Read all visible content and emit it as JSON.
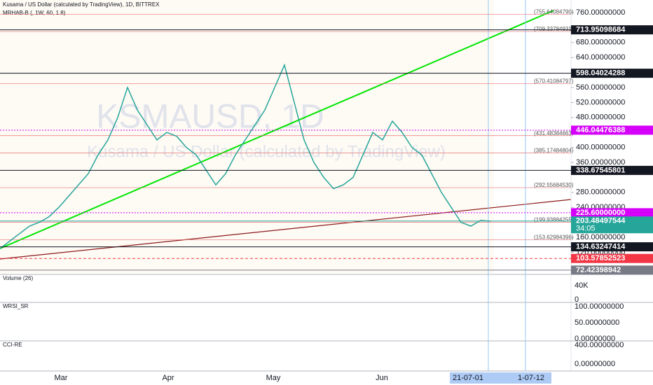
{
  "header": {
    "title": "Kusama / US Dollar (calculated by TradingView), 1D, BITTREX",
    "indicator": "MRHAB-B (, 1W, 60, 1.8)"
  },
  "watermark": {
    "symbol": "KSMAUSD, 1D",
    "name": "Kusama / US Dollar (calculated by TradingView)"
  },
  "price": {
    "type": "line",
    "ylim": [
      64.7,
      793.6
    ],
    "yticks": [
      {
        "value": 760,
        "label": "760.00000000"
      },
      {
        "value": 680,
        "label": "680.00000000"
      },
      {
        "value": 640,
        "label": "640.00000000"
      },
      {
        "value": 560,
        "label": "560.00000000"
      },
      {
        "value": 520,
        "label": "520.00000000"
      },
      {
        "value": 480,
        "label": "480.00000000"
      },
      {
        "value": 400,
        "label": "400.00000000"
      },
      {
        "value": 360,
        "label": "360.00000000"
      },
      {
        "value": 280,
        "label": "280.00000000"
      },
      {
        "value": 240,
        "label": "240.00000000"
      },
      {
        "value": 160,
        "label": "160.00000000"
      },
      {
        "value": 120,
        "label": "120.00000000"
      }
    ],
    "badges": [
      {
        "value": 713.95098684,
        "label": "713.95098684",
        "color": "#131722"
      },
      {
        "value": 598.04024288,
        "label": "598.04024288",
        "color": "#131722"
      },
      {
        "value": 446.04476388,
        "label": "446.04476388",
        "color": "#d500f9"
      },
      {
        "value": 338.67545801,
        "label": "338.67545801",
        "color": "#131722"
      },
      {
        "value": 225.6,
        "label": "225.60000000",
        "color": "#d500f9"
      },
      {
        "value": 203.48497544,
        "label": "203.48497544",
        "color": "#26a69a"
      },
      {
        "value": 134.63247414,
        "label": "134.63247414",
        "color": "#131722"
      },
      {
        "value": 103.57852523,
        "label": "103.57852523",
        "color": "#f23645"
      },
      {
        "value": 72.42398942,
        "label": "72.42398942",
        "color": "#787b86"
      }
    ],
    "countdown": "34:05",
    "levels": [
      {
        "value": 755.6408479,
        "label": "(755.64084790)"
      },
      {
        "value": 709.33784931,
        "label": "(709.33784931)"
      },
      {
        "value": 570.41084797,
        "label": "(570.41084797)"
      },
      {
        "value": 431.48384663,
        "label": "(431.48384663)"
      },
      {
        "value": 385.17484804,
        "label": "(385.17484804)"
      },
      {
        "value": 292.5568453,
        "label": "(292.55684530)"
      },
      {
        "value": 199.93884255,
        "label": "(199.93884255)"
      },
      {
        "value": 153.62984396,
        "label": "(153.62984396)"
      }
    ],
    "closes": [
      130,
      150,
      170,
      190,
      200,
      215,
      240,
      270,
      300,
      330,
      380,
      420,
      480,
      560,
      500,
      460,
      420,
      440,
      430,
      400,
      380,
      340,
      300,
      330,
      380,
      420,
      460,
      500,
      560,
      620,
      520,
      420,
      360,
      320,
      290,
      300,
      320,
      380,
      440,
      420,
      470,
      440,
      400,
      380,
      330,
      280,
      240,
      200,
      190,
      205,
      203
    ],
    "color": "#26a69a"
  },
  "panes": {
    "volume": {
      "label": "Volume (26)",
      "ticks": [
        "40K",
        "0"
      ]
    },
    "rsi": {
      "label": "WRSI_SR",
      "ticks": [
        "100.00000000",
        "50.00000000",
        "0.00000000"
      ]
    },
    "cci": {
      "label": "CCI-RE",
      "ticks": [
        "400.00000000",
        "0.00000000"
      ]
    }
  },
  "xaxis": {
    "labels": [
      "Mar",
      "Apr",
      "May",
      "Jun"
    ],
    "highlight": [
      "21-07-01",
      "1-07-12"
    ]
  }
}
